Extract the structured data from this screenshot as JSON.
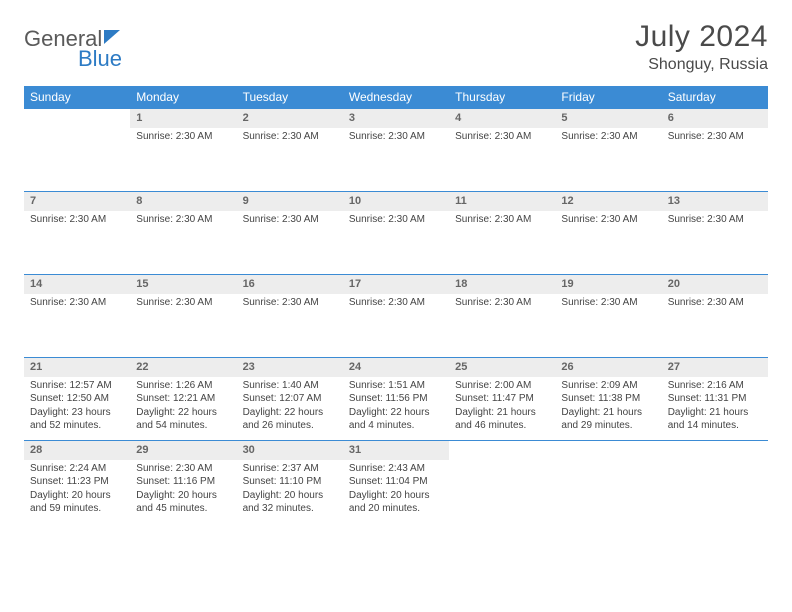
{
  "brand": {
    "part1": "General",
    "part2": "Blue"
  },
  "title": "July 2024",
  "location": "Shonguy, Russia",
  "colors": {
    "header_bg": "#3b8bd4",
    "header_text": "#ffffff",
    "daynum_bg": "#ededed",
    "border": "#3b8bd4",
    "brand_gray": "#5a5a5a",
    "brand_blue": "#2d7bc4"
  },
  "day_names": [
    "Sunday",
    "Monday",
    "Tuesday",
    "Wednesday",
    "Thursday",
    "Friday",
    "Saturday"
  ],
  "weeks": [
    [
      {
        "num": "",
        "lines": []
      },
      {
        "num": "1",
        "lines": [
          "Sunrise: 2:30 AM"
        ]
      },
      {
        "num": "2",
        "lines": [
          "Sunrise: 2:30 AM"
        ]
      },
      {
        "num": "3",
        "lines": [
          "Sunrise: 2:30 AM"
        ]
      },
      {
        "num": "4",
        "lines": [
          "Sunrise: 2:30 AM"
        ]
      },
      {
        "num": "5",
        "lines": [
          "Sunrise: 2:30 AM"
        ]
      },
      {
        "num": "6",
        "lines": [
          "Sunrise: 2:30 AM"
        ]
      }
    ],
    [
      {
        "num": "7",
        "lines": [
          "Sunrise: 2:30 AM"
        ]
      },
      {
        "num": "8",
        "lines": [
          "Sunrise: 2:30 AM"
        ]
      },
      {
        "num": "9",
        "lines": [
          "Sunrise: 2:30 AM"
        ]
      },
      {
        "num": "10",
        "lines": [
          "Sunrise: 2:30 AM"
        ]
      },
      {
        "num": "11",
        "lines": [
          "Sunrise: 2:30 AM"
        ]
      },
      {
        "num": "12",
        "lines": [
          "Sunrise: 2:30 AM"
        ]
      },
      {
        "num": "13",
        "lines": [
          "Sunrise: 2:30 AM"
        ]
      }
    ],
    [
      {
        "num": "14",
        "lines": [
          "Sunrise: 2:30 AM"
        ]
      },
      {
        "num": "15",
        "lines": [
          "Sunrise: 2:30 AM"
        ]
      },
      {
        "num": "16",
        "lines": [
          "Sunrise: 2:30 AM"
        ]
      },
      {
        "num": "17",
        "lines": [
          "Sunrise: 2:30 AM"
        ]
      },
      {
        "num": "18",
        "lines": [
          "Sunrise: 2:30 AM"
        ]
      },
      {
        "num": "19",
        "lines": [
          "Sunrise: 2:30 AM"
        ]
      },
      {
        "num": "20",
        "lines": [
          "Sunrise: 2:30 AM"
        ]
      }
    ],
    [
      {
        "num": "21",
        "lines": [
          "Sunrise: 12:57 AM",
          "Sunset: 12:50 AM",
          "Daylight: 23 hours and 52 minutes."
        ]
      },
      {
        "num": "22",
        "lines": [
          "Sunrise: 1:26 AM",
          "Sunset: 12:21 AM",
          "Daylight: 22 hours and 54 minutes."
        ]
      },
      {
        "num": "23",
        "lines": [
          "Sunrise: 1:40 AM",
          "Sunset: 12:07 AM",
          "Daylight: 22 hours and 26 minutes."
        ]
      },
      {
        "num": "24",
        "lines": [
          "Sunrise: 1:51 AM",
          "Sunset: 11:56 PM",
          "Daylight: 22 hours and 4 minutes."
        ]
      },
      {
        "num": "25",
        "lines": [
          "Sunrise: 2:00 AM",
          "Sunset: 11:47 PM",
          "Daylight: 21 hours and 46 minutes."
        ]
      },
      {
        "num": "26",
        "lines": [
          "Sunrise: 2:09 AM",
          "Sunset: 11:38 PM",
          "Daylight: 21 hours and 29 minutes."
        ]
      },
      {
        "num": "27",
        "lines": [
          "Sunrise: 2:16 AM",
          "Sunset: 11:31 PM",
          "Daylight: 21 hours and 14 minutes."
        ]
      }
    ],
    [
      {
        "num": "28",
        "lines": [
          "Sunrise: 2:24 AM",
          "Sunset: 11:23 PM",
          "Daylight: 20 hours and 59 minutes."
        ]
      },
      {
        "num": "29",
        "lines": [
          "Sunrise: 2:30 AM",
          "Sunset: 11:16 PM",
          "Daylight: 20 hours and 45 minutes."
        ]
      },
      {
        "num": "30",
        "lines": [
          "Sunrise: 2:37 AM",
          "Sunset: 11:10 PM",
          "Daylight: 20 hours and 32 minutes."
        ]
      },
      {
        "num": "31",
        "lines": [
          "Sunrise: 2:43 AM",
          "Sunset: 11:04 PM",
          "Daylight: 20 hours and 20 minutes."
        ]
      },
      {
        "num": "",
        "lines": []
      },
      {
        "num": "",
        "lines": []
      },
      {
        "num": "",
        "lines": []
      }
    ]
  ]
}
